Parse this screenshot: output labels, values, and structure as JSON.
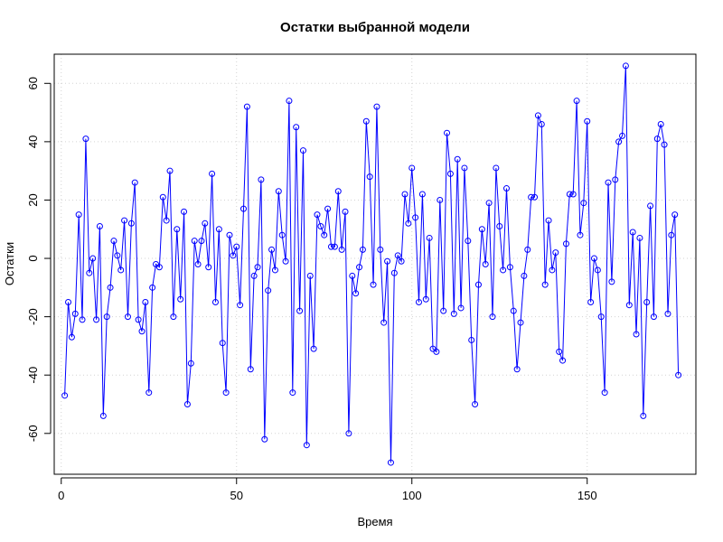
{
  "chart_data": {
    "type": "line",
    "title": "Остатки выбранной модели",
    "xlabel": "Время",
    "ylabel": "Остатки",
    "xlim": [
      -2,
      181
    ],
    "ylim": [
      -74,
      70
    ],
    "x_ticks": [
      0,
      50,
      100,
      150
    ],
    "x_tick_labels": [
      "0",
      "50",
      "100",
      "150"
    ],
    "y_ticks": [
      -60,
      -40,
      -20,
      0,
      20,
      40,
      60
    ],
    "y_tick_labels": [
      "-60",
      "-40",
      "-20",
      "0",
      "20",
      "40",
      "60"
    ],
    "grid": true,
    "legend": "none",
    "markers": "open-circle",
    "series": [
      {
        "color": "#0000ff",
        "values": [
          -47,
          -15,
          -27,
          -19,
          15,
          -21,
          41,
          -5,
          0,
          -21,
          11,
          -54,
          -20,
          -10,
          6,
          1,
          -4,
          13,
          -20,
          12,
          26,
          -21,
          -25,
          -15,
          -46,
          -10,
          -2,
          -3,
          21,
          13,
          30,
          -20,
          10,
          -14,
          16,
          -50,
          -36,
          6,
          -2,
          6,
          12,
          -3,
          29,
          -15,
          10,
          -29,
          -46,
          8,
          1,
          4,
          -16,
          17,
          52,
          -38,
          -6,
          -3,
          27,
          -62,
          -11,
          3,
          -4,
          23,
          8,
          -1,
          54,
          -46,
          45,
          -18,
          37,
          -64,
          -6,
          -31,
          15,
          11,
          8,
          17,
          4,
          4,
          23,
          3,
          16,
          -60,
          -6,
          -12,
          -3,
          3,
          47,
          28,
          -9,
          52,
          3,
          -22,
          -1,
          -70,
          -5,
          1,
          -1,
          22,
          12,
          31,
          14,
          -15,
          22,
          -14,
          7,
          -31,
          -32,
          20,
          -18,
          43,
          29,
          -19,
          34,
          -17,
          31,
          6,
          -28,
          -50,
          -9,
          10,
          -2,
          19,
          -20,
          31,
          11,
          -4,
          24,
          -3,
          -18,
          -38,
          -22,
          -6,
          3,
          21,
          21,
          49,
          46,
          -9,
          13,
          -4,
          2,
          -32,
          -35,
          5,
          22,
          22,
          54,
          8,
          19,
          47,
          -15,
          0,
          -4,
          -20,
          -46,
          26,
          -8,
          27,
          40,
          42,
          66,
          -16,
          9,
          -26,
          7,
          -54,
          -15,
          18,
          -20,
          41,
          46,
          39,
          -19,
          8,
          15,
          -40
        ]
      }
    ]
  }
}
